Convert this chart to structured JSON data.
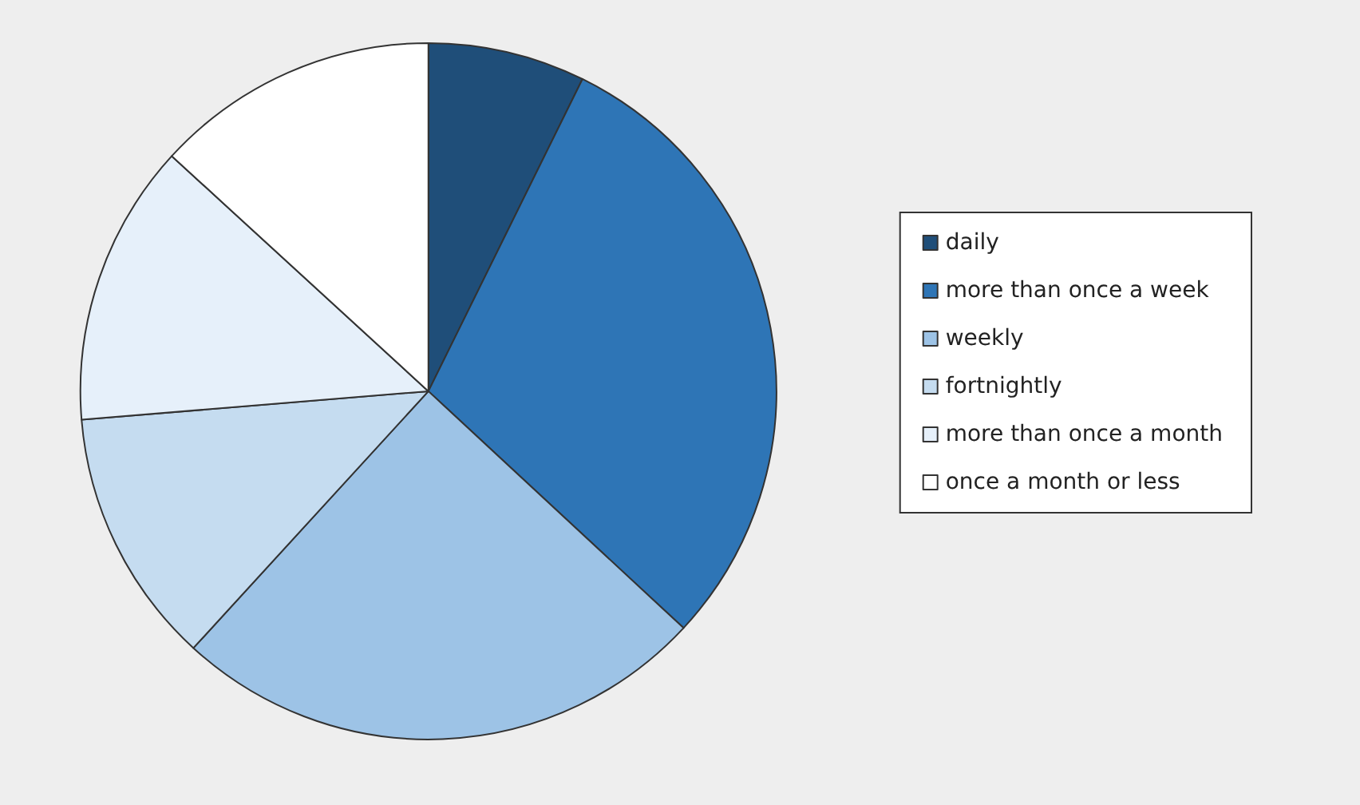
{
  "chart_data": {
    "type": "pie",
    "categories": [
      "daily",
      "more than once a week",
      "weekly",
      "fortnightly",
      "more than once a month",
      "once a month or less"
    ],
    "values": [
      7.3,
      29.6,
      24.9,
      11.9,
      13.1,
      13.2
    ],
    "colors": [
      "#1f4e79",
      "#2e75b6",
      "#9dc3e6",
      "#c5dcf0",
      "#e6f0fa",
      "#ffffff"
    ],
    "legend": "right"
  }
}
